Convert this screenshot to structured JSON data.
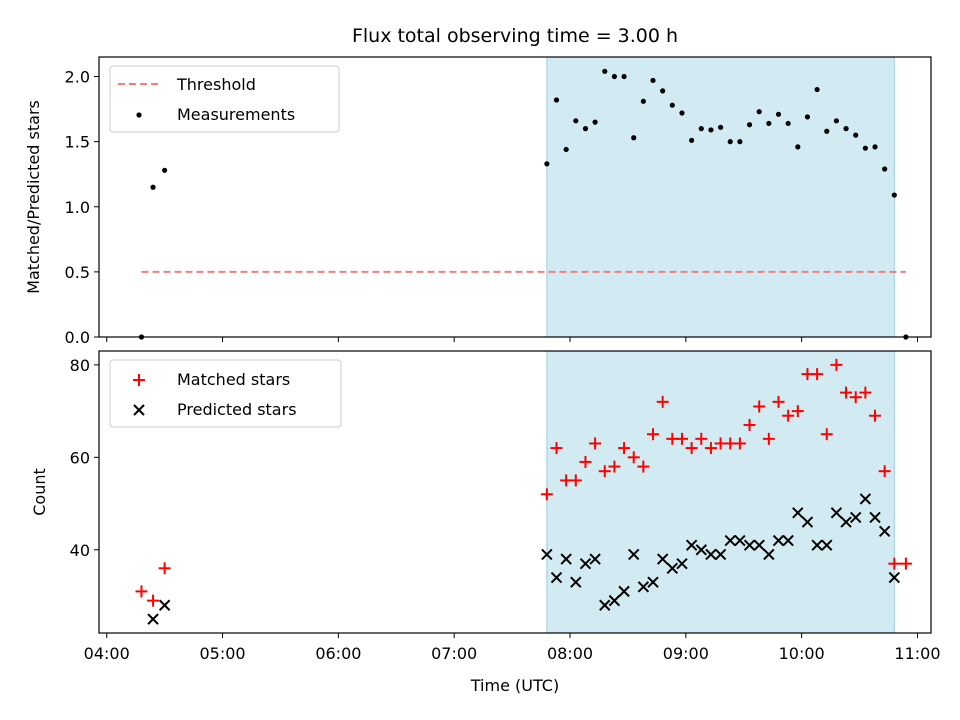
{
  "chart_data": [
    {
      "type": "scatter",
      "title": "Flux total observing time = 3.00 h",
      "xlabel": "",
      "ylabel": "Matched/Predicted stars",
      "ylim": [
        0,
        2.15
      ],
      "yticks": [
        0.0,
        0.5,
        1.0,
        1.5,
        2.0
      ],
      "ytick_labels": [
        "0.0",
        "0.5",
        "1.0",
        "1.5",
        "2.0"
      ],
      "xlim": [
        "04:00",
        "11:00"
      ],
      "shaded_span": [
        "07:48",
        "10:48"
      ],
      "shade_color": "#add8e6",
      "legend_position": "upper-left",
      "threshold": {
        "name": "Threshold",
        "y": 0.5,
        "x_start": "04:18",
        "x_end": "10:54",
        "color": "#f08080"
      },
      "series": [
        {
          "name": "Measurements",
          "color": "#000000",
          "x": [
            "04:18",
            "04:24",
            "04:30",
            "07:48",
            "07:53",
            "07:58",
            "08:03",
            "08:08",
            "08:13",
            "08:18",
            "08:23",
            "08:28",
            "08:33",
            "08:38",
            "08:43",
            "08:48",
            "08:53",
            "08:58",
            "09:03",
            "09:08",
            "09:13",
            "09:18",
            "09:23",
            "09:28",
            "09:33",
            "09:38",
            "09:43",
            "09:48",
            "09:53",
            "09:58",
            "10:03",
            "10:08",
            "10:13",
            "10:18",
            "10:23",
            "10:28",
            "10:33",
            "10:38",
            "10:43",
            "10:48",
            "10:54"
          ],
          "y": [
            0.0,
            1.15,
            1.28,
            1.33,
            1.82,
            1.44,
            1.66,
            1.6,
            1.65,
            2.04,
            2.0,
            2.0,
            1.53,
            1.81,
            1.97,
            1.89,
            1.78,
            1.72,
            1.51,
            1.6,
            1.59,
            1.61,
            1.5,
            1.5,
            1.63,
            1.73,
            1.64,
            1.71,
            1.64,
            1.46,
            1.69,
            1.9,
            1.58,
            1.66,
            1.6,
            1.55,
            1.45,
            1.46,
            1.29,
            1.09,
            0.0
          ]
        }
      ]
    },
    {
      "type": "scatter",
      "title": "",
      "xlabel": "Time (UTC)",
      "ylabel": "Count",
      "ylim": [
        22,
        83
      ],
      "yticks": [
        40,
        60,
        80
      ],
      "ytick_labels": [
        "40",
        "60",
        "80"
      ],
      "xlim": [
        "04:00",
        "11:00"
      ],
      "xticks": [
        "04:00",
        "05:00",
        "06:00",
        "07:00",
        "08:00",
        "09:00",
        "10:00",
        "11:00"
      ],
      "shaded_span": [
        "07:48",
        "10:48"
      ],
      "shade_color": "#add8e6",
      "legend_position": "upper-left",
      "series": [
        {
          "name": "Matched stars",
          "marker": "plus",
          "color": "#ff0000",
          "x": [
            "04:18",
            "04:24",
            "04:30",
            "07:48",
            "07:53",
            "07:58",
            "08:03",
            "08:08",
            "08:13",
            "08:18",
            "08:23",
            "08:28",
            "08:33",
            "08:38",
            "08:43",
            "08:48",
            "08:53",
            "08:58",
            "09:03",
            "09:08",
            "09:13",
            "09:18",
            "09:23",
            "09:28",
            "09:33",
            "09:38",
            "09:43",
            "09:48",
            "09:53",
            "09:58",
            "10:03",
            "10:08",
            "10:13",
            "10:18",
            "10:23",
            "10:28",
            "10:33",
            "10:38",
            "10:43",
            "10:48",
            "10:54"
          ],
          "y": [
            31,
            29,
            36,
            52,
            62,
            55,
            55,
            59,
            63,
            57,
            58,
            62,
            60,
            58,
            65,
            72,
            64,
            64,
            62,
            64,
            62,
            63,
            63,
            63,
            67,
            71,
            64,
            72,
            69,
            70,
            78,
            78,
            65,
            80,
            74,
            73,
            74,
            69,
            57,
            37,
            37
          ]
        },
        {
          "name": "Predicted stars",
          "marker": "x",
          "color": "#000000",
          "x": [
            "04:24",
            "04:30",
            "07:48",
            "07:53",
            "07:58",
            "08:03",
            "08:08",
            "08:13",
            "08:18",
            "08:23",
            "08:28",
            "08:33",
            "08:38",
            "08:43",
            "08:48",
            "08:53",
            "08:58",
            "09:03",
            "09:08",
            "09:13",
            "09:18",
            "09:23",
            "09:28",
            "09:33",
            "09:38",
            "09:43",
            "09:48",
            "09:53",
            "09:58",
            "10:03",
            "10:08",
            "10:13",
            "10:18",
            "10:23",
            "10:28",
            "10:33",
            "10:38",
            "10:43",
            "10:48"
          ],
          "y": [
            25,
            28,
            39,
            34,
            38,
            33,
            37,
            38,
            28,
            29,
            31,
            39,
            32,
            33,
            38,
            36,
            37,
            41,
            40,
            39,
            39,
            42,
            42,
            41,
            41,
            39,
            42,
            42,
            48,
            46,
            41,
            41,
            48,
            46,
            47,
            51,
            47,
            44,
            34
          ]
        }
      ]
    }
  ]
}
